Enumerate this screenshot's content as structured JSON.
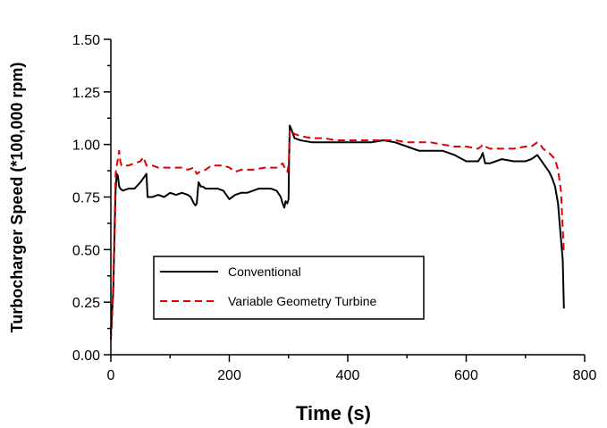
{
  "chart_data": {
    "type": "line",
    "title": "",
    "xlabel": "Time (s)",
    "ylabel": "Turbocharger Speed (*100,000 rpm)",
    "xlim": [
      0,
      800
    ],
    "ylim": [
      0,
      1.5
    ],
    "xticks": [
      0,
      200,
      400,
      600,
      800
    ],
    "xtick_labels": [
      "0",
      "200",
      "400",
      "600",
      "800"
    ],
    "yticks": [
      0,
      0.25,
      0.5,
      0.75,
      1.0,
      1.25,
      1.5
    ],
    "ytick_labels": [
      "0.00",
      "0.25",
      "0.50",
      "0.75",
      "1.00",
      "1.25",
      "1.50"
    ],
    "grid": false,
    "legend_placement": "lower-left",
    "series": [
      {
        "name": "Conventional",
        "color": "#000000",
        "dash": "solid",
        "x": [
          0,
          2,
          4,
          6,
          8,
          10,
          12,
          14,
          16,
          20,
          30,
          40,
          50,
          55,
          60,
          62,
          65,
          70,
          80,
          90,
          100,
          110,
          120,
          130,
          135,
          140,
          143,
          145,
          148,
          150,
          152,
          155,
          160,
          170,
          180,
          190,
          200,
          210,
          220,
          230,
          240,
          250,
          260,
          270,
          280,
          287,
          290,
          293,
          295,
          298,
          300,
          301,
          302,
          305,
          310,
          320,
          340,
          360,
          380,
          400,
          420,
          440,
          460,
          480,
          500,
          520,
          540,
          560,
          580,
          600,
          610,
          620,
          625,
          628,
          632,
          640,
          650,
          660,
          680,
          700,
          710,
          715,
          720,
          730,
          740,
          745,
          750,
          755,
          760,
          763,
          765
        ],
        "y": [
          0.1,
          0.2,
          0.3,
          0.55,
          0.78,
          0.86,
          0.85,
          0.8,
          0.79,
          0.78,
          0.79,
          0.79,
          0.82,
          0.84,
          0.86,
          0.75,
          0.75,
          0.75,
          0.76,
          0.75,
          0.77,
          0.76,
          0.77,
          0.76,
          0.75,
          0.72,
          0.71,
          0.72,
          0.82,
          0.81,
          0.8,
          0.8,
          0.79,
          0.79,
          0.79,
          0.78,
          0.74,
          0.76,
          0.77,
          0.77,
          0.78,
          0.79,
          0.79,
          0.79,
          0.78,
          0.75,
          0.72,
          0.7,
          0.73,
          0.72,
          0.74,
          0.94,
          1.09,
          1.07,
          1.03,
          1.02,
          1.01,
          1.01,
          1.01,
          1.01,
          1.01,
          1.01,
          1.02,
          1.01,
          0.99,
          0.97,
          0.97,
          0.97,
          0.95,
          0.92,
          0.92,
          0.92,
          0.94,
          0.96,
          0.91,
          0.91,
          0.92,
          0.93,
          0.92,
          0.92,
          0.93,
          0.94,
          0.95,
          0.91,
          0.87,
          0.84,
          0.8,
          0.72,
          0.55,
          0.45,
          0.22
        ]
      },
      {
        "name": "Variable Geometry Turbine",
        "color": "#e00000",
        "dash": "dashed",
        "x": [
          0,
          2,
          4,
          6,
          8,
          10,
          12,
          14,
          16,
          18,
          20,
          30,
          40,
          50,
          55,
          60,
          62,
          65,
          70,
          80,
          90,
          100,
          110,
          120,
          130,
          140,
          145,
          150,
          160,
          170,
          180,
          190,
          200,
          210,
          220,
          240,
          260,
          280,
          290,
          295,
          298,
          300,
          301,
          302,
          305,
          310,
          320,
          340,
          360,
          380,
          400,
          420,
          440,
          460,
          480,
          500,
          520,
          540,
          560,
          580,
          600,
          620,
          625,
          628,
          632,
          640,
          660,
          680,
          700,
          710,
          720,
          725,
          730,
          740,
          750,
          755,
          760,
          763,
          765
        ],
        "y": [
          0.07,
          0.15,
          0.35,
          0.6,
          0.86,
          0.9,
          0.93,
          0.97,
          0.92,
          0.9,
          0.9,
          0.9,
          0.91,
          0.92,
          0.94,
          0.9,
          0.9,
          0.9,
          0.9,
          0.89,
          0.89,
          0.89,
          0.89,
          0.89,
          0.88,
          0.89,
          0.86,
          0.87,
          0.88,
          0.9,
          0.9,
          0.9,
          0.89,
          0.87,
          0.88,
          0.88,
          0.89,
          0.89,
          0.91,
          0.88,
          0.87,
          0.9,
          0.95,
          1.07,
          1.06,
          1.05,
          1.04,
          1.03,
          1.03,
          1.02,
          1.02,
          1.02,
          1.02,
          1.02,
          1.02,
          1.01,
          1.01,
          1.01,
          1.0,
          0.99,
          0.99,
          0.98,
          0.99,
          1.0,
          0.99,
          0.98,
          0.98,
          0.98,
          0.99,
          0.99,
          1.01,
          1.0,
          0.98,
          0.96,
          0.93,
          0.88,
          0.78,
          0.6,
          0.48
        ]
      }
    ]
  }
}
